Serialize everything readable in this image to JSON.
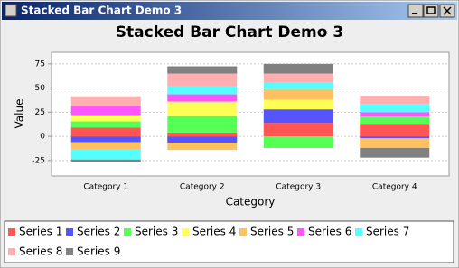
{
  "window_title": "Stacked Bar Chart Demo 3",
  "chart_data": {
    "type": "stacked_bar",
    "title": "Stacked Bar Chart Demo 3",
    "x_label": "Category",
    "y_label": "Value",
    "categories": [
      "Category 1",
      "Category 2",
      "Category 3",
      "Category 4"
    ],
    "series": [
      {
        "name": "Series 1",
        "color": "#ff5555",
        "values": [
          9,
          4,
          14,
          13
        ]
      },
      {
        "name": "Series 2",
        "color": "#5555ff",
        "values": [
          -6,
          -6.5,
          14,
          -2
        ]
      },
      {
        "name": "Series 3",
        "color": "#55ff55",
        "values": [
          6.5,
          17,
          -12,
          7.5
        ]
      },
      {
        "name": "Series 4",
        "color": "#ffff55",
        "values": [
          6.5,
          15,
          10,
          0
        ]
      },
      {
        "name": "Series 5",
        "color": "#ffc060",
        "values": [
          -7,
          -7.5,
          11,
          -10
        ]
      },
      {
        "name": "Series 6",
        "color": "#ff55ff",
        "values": [
          9.5,
          7.5,
          0,
          4.5
        ]
      },
      {
        "name": "Series 7",
        "color": "#55ffff",
        "values": [
          -11,
          8.5,
          6.5,
          8.5
        ]
      },
      {
        "name": "Series 8",
        "color": "#ffafaf",
        "values": [
          10,
          13,
          9.5,
          8.5
        ]
      },
      {
        "name": "Series 9",
        "color": "#808080",
        "values": [
          -3,
          7.5,
          10,
          -10
        ]
      }
    ],
    "ylim": [
      -41,
      87
    ],
    "yticks": [
      -25,
      0,
      25,
      50,
      75
    ],
    "grid": true
  }
}
